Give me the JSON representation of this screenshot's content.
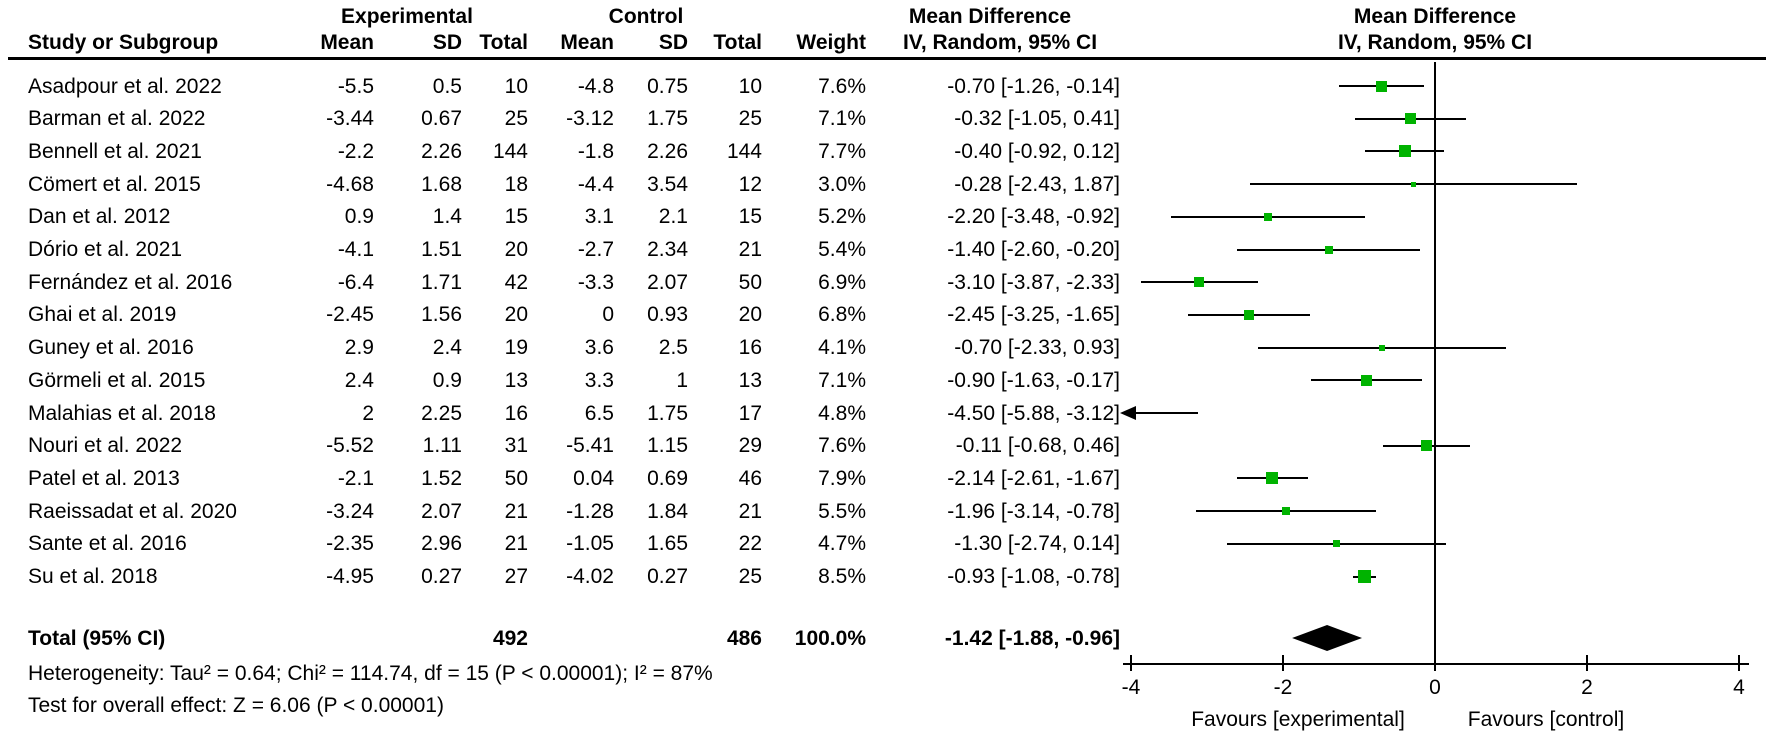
{
  "header": {
    "group_experimental": "Experimental",
    "group_control": "Control",
    "study_col": "Study or Subgroup",
    "mean_col": "Mean",
    "sd_col": "SD",
    "total_col": "Total",
    "mean_col2": "Mean",
    "sd_col2": "SD",
    "total_col2": "Total",
    "weight_col": "Weight",
    "md_title": "Mean Difference",
    "md_subtitle": "IV, Random, 95% CI",
    "plot_title": "Mean Difference",
    "plot_subtitle": "IV, Random, 95% CI"
  },
  "chart_data": {
    "type": "scatter",
    "subtype": "forest-plot-mean-difference",
    "effect_model": "IV, Random, 95% CI",
    "xlim": [
      -4,
      4
    ],
    "ticks": [
      "-4",
      "-2",
      "0",
      "2",
      "4"
    ],
    "tick_values": [
      -4,
      -2,
      0,
      2,
      4
    ],
    "favours_left": "Favours [experimental]",
    "favours_right": "Favours [control]",
    "marker_color": "#00b300",
    "line_color": "#000000",
    "studies": [
      {
        "name": "Asadpour et al. 2022",
        "exp_mean": "-5.5",
        "exp_sd": "0.5",
        "exp_total": "10",
        "ctl_mean": "-4.8",
        "ctl_sd": "0.75",
        "ctl_total": "10",
        "weight": "7.6%",
        "weight_pct": 7.6,
        "ci_text": "-0.70 [-1.26, -0.14]",
        "est": -0.7,
        "lo": -1.26,
        "hi": -0.14
      },
      {
        "name": "Barman et al. 2022",
        "exp_mean": "-3.44",
        "exp_sd": "0.67",
        "exp_total": "25",
        "ctl_mean": "-3.12",
        "ctl_sd": "1.75",
        "ctl_total": "25",
        "weight": "7.1%",
        "weight_pct": 7.1,
        "ci_text": "-0.32 [-1.05, 0.41]",
        "est": -0.32,
        "lo": -1.05,
        "hi": 0.41
      },
      {
        "name": "Bennell et al. 2021",
        "exp_mean": "-2.2",
        "exp_sd": "2.26",
        "exp_total": "144",
        "ctl_mean": "-1.8",
        "ctl_sd": "2.26",
        "ctl_total": "144",
        "weight": "7.7%",
        "weight_pct": 7.7,
        "ci_text": "-0.40 [-0.92, 0.12]",
        "est": -0.4,
        "lo": -0.92,
        "hi": 0.12
      },
      {
        "name": "Cömert et al. 2015",
        "exp_mean": "-4.68",
        "exp_sd": "1.68",
        "exp_total": "18",
        "ctl_mean": "-4.4",
        "ctl_sd": "3.54",
        "ctl_total": "12",
        "weight": "3.0%",
        "weight_pct": 3.0,
        "ci_text": "-0.28 [-2.43, 1.87]",
        "est": -0.28,
        "lo": -2.43,
        "hi": 1.87
      },
      {
        "name": "Dan et al. 2012",
        "exp_mean": "0.9",
        "exp_sd": "1.4",
        "exp_total": "15",
        "ctl_mean": "3.1",
        "ctl_sd": "2.1",
        "ctl_total": "15",
        "weight": "5.2%",
        "weight_pct": 5.2,
        "ci_text": "-2.20 [-3.48, -0.92]",
        "est": -2.2,
        "lo": -3.48,
        "hi": -0.92
      },
      {
        "name": "Dório et al. 2021",
        "exp_mean": "-4.1",
        "exp_sd": "1.51",
        "exp_total": "20",
        "ctl_mean": "-2.7",
        "ctl_sd": "2.34",
        "ctl_total": "21",
        "weight": "5.4%",
        "weight_pct": 5.4,
        "ci_text": "-1.40 [-2.60, -0.20]",
        "est": -1.4,
        "lo": -2.6,
        "hi": -0.2
      },
      {
        "name": "Fernández et al. 2016",
        "exp_mean": "-6.4",
        "exp_sd": "1.71",
        "exp_total": "42",
        "ctl_mean": "-3.3",
        "ctl_sd": "2.07",
        "ctl_total": "50",
        "weight": "6.9%",
        "weight_pct": 6.9,
        "ci_text": "-3.10 [-3.87, -2.33]",
        "est": -3.1,
        "lo": -3.87,
        "hi": -2.33
      },
      {
        "name": "Ghai et al. 2019",
        "exp_mean": "-2.45",
        "exp_sd": "1.56",
        "exp_total": "20",
        "ctl_mean": "0",
        "ctl_sd": "0.93",
        "ctl_total": "20",
        "weight": "6.8%",
        "weight_pct": 6.8,
        "ci_text": "-2.45 [-3.25, -1.65]",
        "est": -2.45,
        "lo": -3.25,
        "hi": -1.65
      },
      {
        "name": "Guney et al. 2016",
        "exp_mean": "2.9",
        "exp_sd": "2.4",
        "exp_total": "19",
        "ctl_mean": "3.6",
        "ctl_sd": "2.5",
        "ctl_total": "16",
        "weight": "4.1%",
        "weight_pct": 4.1,
        "ci_text": "-0.70 [-2.33, 0.93]",
        "est": -0.7,
        "lo": -2.33,
        "hi": 0.93
      },
      {
        "name": "Görmeli et al. 2015",
        "exp_mean": "2.4",
        "exp_sd": "0.9",
        "exp_total": "13",
        "ctl_mean": "3.3",
        "ctl_sd": "1",
        "ctl_total": "13",
        "weight": "7.1%",
        "weight_pct": 7.1,
        "ci_text": "-0.90 [-1.63, -0.17]",
        "est": -0.9,
        "lo": -1.63,
        "hi": -0.17
      },
      {
        "name": "Malahias et al. 2018",
        "exp_mean": "2",
        "exp_sd": "2.25",
        "exp_total": "16",
        "ctl_mean": "6.5",
        "ctl_sd": "1.75",
        "ctl_total": "17",
        "weight": "4.8%",
        "weight_pct": 4.8,
        "ci_text": "-4.50 [-5.88, -3.12]",
        "est": -4.5,
        "lo": -5.88,
        "hi": -3.12
      },
      {
        "name": "Nouri et al. 2022",
        "exp_mean": "-5.52",
        "exp_sd": "1.11",
        "exp_total": "31",
        "ctl_mean": "-5.41",
        "ctl_sd": "1.15",
        "ctl_total": "29",
        "weight": "7.6%",
        "weight_pct": 7.6,
        "ci_text": "-0.11 [-0.68, 0.46]",
        "est": -0.11,
        "lo": -0.68,
        "hi": 0.46
      },
      {
        "name": "Patel et al. 2013",
        "exp_mean": "-2.1",
        "exp_sd": "1.52",
        "exp_total": "50",
        "ctl_mean": "0.04",
        "ctl_sd": "0.69",
        "ctl_total": "46",
        "weight": "7.9%",
        "weight_pct": 7.9,
        "ci_text": "-2.14 [-2.61, -1.67]",
        "est": -2.14,
        "lo": -2.61,
        "hi": -1.67
      },
      {
        "name": "Raeissadat et al. 2020",
        "exp_mean": "-3.24",
        "exp_sd": "2.07",
        "exp_total": "21",
        "ctl_mean": "-1.28",
        "ctl_sd": "1.84",
        "ctl_total": "21",
        "weight": "5.5%",
        "weight_pct": 5.5,
        "ci_text": "-1.96 [-3.14, -0.78]",
        "est": -1.96,
        "lo": -3.14,
        "hi": -0.78
      },
      {
        "name": "Sante et al. 2016",
        "exp_mean": "-2.35",
        "exp_sd": "2.96",
        "exp_total": "21",
        "ctl_mean": "-1.05",
        "ctl_sd": "1.65",
        "ctl_total": "22",
        "weight": "4.7%",
        "weight_pct": 4.7,
        "ci_text": "-1.30 [-2.74, 0.14]",
        "est": -1.3,
        "lo": -2.74,
        "hi": 0.14
      },
      {
        "name": "Su et al. 2018",
        "exp_mean": "-4.95",
        "exp_sd": "0.27",
        "exp_total": "27",
        "ctl_mean": "-4.02",
        "ctl_sd": "0.27",
        "ctl_total": "25",
        "weight": "8.5%",
        "weight_pct": 8.5,
        "ci_text": "-0.93 [-1.08, -0.78]",
        "est": -0.93,
        "lo": -1.08,
        "hi": -0.78
      }
    ],
    "total": {
      "label": "Total (95% CI)",
      "exp_total": "492",
      "ctl_total": "486",
      "weight": "100.0%",
      "ci_text": "-1.42 [-1.88, -0.96]",
      "est": -1.42,
      "lo": -1.88,
      "hi": -0.96
    },
    "heterogeneity": "Heterogeneity: Tau² = 0.64; Chi² = 114.74, df = 15 (P < 0.00001); I² = 87%",
    "overall_effect": "Test for overall effect: Z = 6.06 (P < 0.00001)"
  }
}
